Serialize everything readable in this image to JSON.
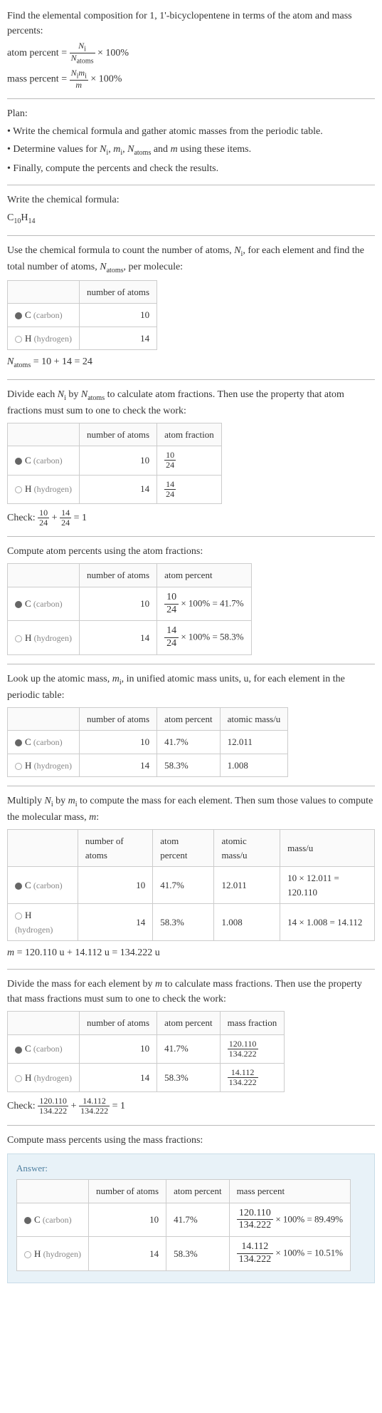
{
  "intro": {
    "line1": "Find the elemental composition for 1, 1'-bicyclopentene in terms of the atom and mass percents:",
    "atom_percent_label": "atom percent",
    "mass_percent_label": "mass percent",
    "eq": "=",
    "times100": "× 100%",
    "frac1_num": "N",
    "frac1_num_sub": "i",
    "frac1_den": "N",
    "frac1_den_sub": "atoms",
    "frac2_num_a": "N",
    "frac2_num_a_sub": "i",
    "frac2_num_b": "m",
    "frac2_num_b_sub": "i",
    "frac2_den": "m"
  },
  "plan": {
    "title": "Plan:",
    "b1": "• Write the chemical formula and gather atomic masses from the periodic table.",
    "b2": "• Determine values for ",
    "b2_n": "N",
    "b2_n_sub": "i",
    "b2_c1": ", ",
    "b2_m": "m",
    "b2_m_sub": "i",
    "b2_c2": ", ",
    "b2_na": "N",
    "b2_na_sub": "atoms",
    "b2_c3": " and ",
    "b2_mm": "m",
    "b2_end": " using these items.",
    "b3": "• Finally, compute the percents and check the results."
  },
  "formula": {
    "title": "Write the chemical formula:",
    "c": "C",
    "c_sub": "10",
    "h": "H",
    "h_sub": "14"
  },
  "count": {
    "intro_a": "Use the chemical formula to count the number of atoms, ",
    "intro_n": "N",
    "intro_n_sub": "i",
    "intro_b": ", for each element and find the total number of atoms, ",
    "intro_na": "N",
    "intro_na_sub": "atoms",
    "intro_c": ", per molecule:",
    "col_atoms": "number of atoms",
    "c_label": "C",
    "c_note": "(carbon)",
    "c_val": "10",
    "h_label": "H",
    "h_note": "(hydrogen)",
    "h_val": "14",
    "eq_n": "N",
    "eq_n_sub": "atoms",
    "eq_rest": " = 10 + 14 = 24"
  },
  "atomfrac": {
    "intro_a": "Divide each ",
    "intro_n": "N",
    "intro_n_sub": "i",
    "intro_b": " by ",
    "intro_na": "N",
    "intro_na_sub": "atoms",
    "intro_c": " to calculate atom fractions. Then use the property that atom fractions must sum to one to check the work:",
    "col_atoms": "number of atoms",
    "col_frac": "atom fraction",
    "c_val": "10",
    "c_fnum": "10",
    "c_fden": "24",
    "h_val": "14",
    "h_fnum": "14",
    "h_fden": "24",
    "check_label": "Check: ",
    "check_f1n": "10",
    "check_f1d": "24",
    "check_plus": " + ",
    "check_f2n": "14",
    "check_f2d": "24",
    "check_eq": " = 1"
  },
  "atompct": {
    "title": "Compute atom percents using the atom fractions:",
    "col_atoms": "number of atoms",
    "col_pct": "atom percent",
    "c_val": "10",
    "c_fn": "10",
    "c_fd": "24",
    "c_rest": " × 100% = 41.7%",
    "h_val": "14",
    "h_fn": "14",
    "h_fd": "24",
    "h_rest": " × 100% = 58.3%"
  },
  "atomic_mass": {
    "intro_a": "Look up the atomic mass, ",
    "intro_m": "m",
    "intro_m_sub": "i",
    "intro_b": ", in unified atomic mass units, u, for each element in the periodic table:",
    "col_atoms": "number of atoms",
    "col_pct": "atom percent",
    "col_mass": "atomic mass/u",
    "c_val": "10",
    "c_pct": "41.7%",
    "c_mass": "12.011",
    "h_val": "14",
    "h_pct": "58.3%",
    "h_mass": "1.008"
  },
  "molmass": {
    "intro_a": "Multiply ",
    "intro_n": "N",
    "intro_n_sub": "i",
    "intro_b": " by ",
    "intro_m": "m",
    "intro_m_sub": "i",
    "intro_c": " to compute the mass for each element. Then sum those values to compute the molecular mass, ",
    "intro_mm": "m",
    "intro_d": ":",
    "col_atoms": "number of atoms",
    "col_pct": "atom percent",
    "col_am": "atomic mass/u",
    "col_mass": "mass/u",
    "c_val": "10",
    "c_pct": "41.7%",
    "c_am": "12.011",
    "c_mass": "10 × 12.011 = 120.110",
    "h_val": "14",
    "h_pct": "58.3%",
    "h_am": "1.008",
    "h_mass": "14 × 1.008 = 14.112",
    "eq_m": "m",
    "eq_rest": " = 120.110 u + 14.112 u = 134.222 u"
  },
  "massfrac": {
    "intro_a": "Divide the mass for each element by ",
    "intro_m": "m",
    "intro_b": " to calculate mass fractions. Then use the property that mass fractions must sum to one to check the work:",
    "col_atoms": "number of atoms",
    "col_pct": "atom percent",
    "col_mf": "mass fraction",
    "c_val": "10",
    "c_pct": "41.7%",
    "c_fn": "120.110",
    "c_fd": "134.222",
    "h_val": "14",
    "h_pct": "58.3%",
    "h_fn": "14.112",
    "h_fd": "134.222",
    "check_label": "Check: ",
    "check_f1n": "120.110",
    "check_f1d": "134.222",
    "check_plus": " + ",
    "check_f2n": "14.112",
    "check_f2d": "134.222",
    "check_eq": " = 1"
  },
  "masspct": {
    "title": "Compute mass percents using the mass fractions:",
    "answer_label": "Answer:",
    "col_atoms": "number of atoms",
    "col_pct": "atom percent",
    "col_mp": "mass percent",
    "c_val": "10",
    "c_pct": "41.7%",
    "c_fn": "120.110",
    "c_fd": "134.222",
    "c_rest": " × 100% = 89.49%",
    "h_val": "14",
    "h_pct": "58.3%",
    "h_fn": "14.112",
    "h_fd": "134.222",
    "h_rest": " × 100% = 10.51%"
  },
  "labels": {
    "c": "C",
    "c_note": "(carbon)",
    "h": "H",
    "h_note": "(hydrogen)"
  },
  "colors": {
    "text": "#333333",
    "muted": "#888888",
    "border": "#cccccc",
    "hr": "#bbbbbb",
    "answer_bg": "#e8f2f8",
    "answer_border": "#c8dce8",
    "answer_label": "#5080a0",
    "dot_c": "#666666",
    "dot_h_border": "#aaaaaa"
  }
}
